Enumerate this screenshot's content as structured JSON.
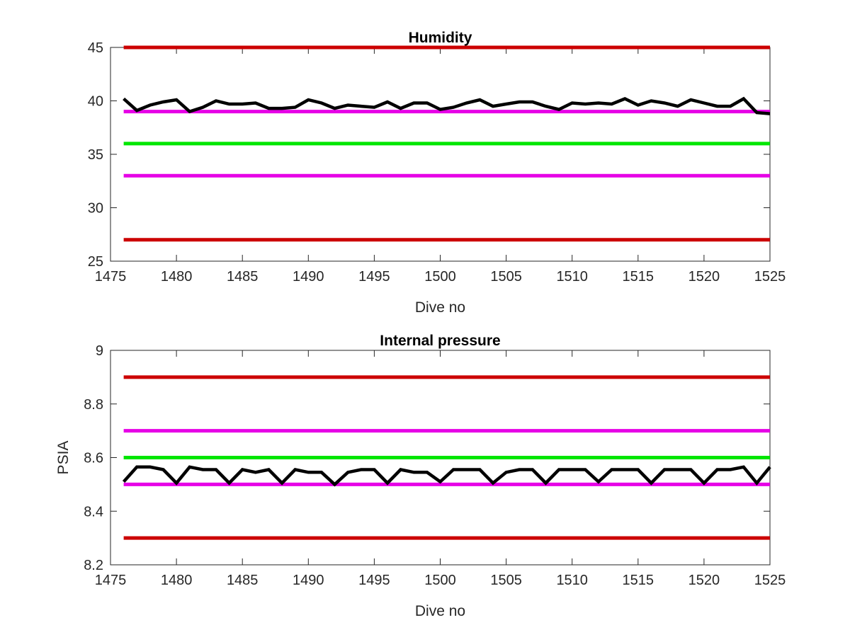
{
  "chart_data": [
    {
      "type": "line",
      "title": "Humidity",
      "xlabel": "Dive no",
      "ylabel": "",
      "xlim": [
        1475,
        1525
      ],
      "ylim": [
        25,
        45
      ],
      "xticks": [
        1475,
        1480,
        1485,
        1490,
        1495,
        1500,
        1505,
        1510,
        1515,
        1520,
        1525
      ],
      "yticks": [
        25,
        30,
        35,
        40,
        45
      ],
      "grid": false,
      "threshold_lines": [
        {
          "value": 45,
          "color": "#cc0000",
          "x_range": [
            1476,
            1525
          ]
        },
        {
          "value": 39,
          "color": "#e600e6",
          "x_range": [
            1476,
            1525
          ]
        },
        {
          "value": 36,
          "color": "#00e600",
          "x_range": [
            1476,
            1525
          ]
        },
        {
          "value": 33,
          "color": "#e600e6",
          "x_range": [
            1476,
            1525
          ]
        },
        {
          "value": 27,
          "color": "#cc0000",
          "x_range": [
            1476,
            1525
          ]
        }
      ],
      "series": [
        {
          "color": "#000000",
          "x": [
            1476,
            1477,
            1478,
            1479,
            1480,
            1481,
            1482,
            1483,
            1484,
            1485,
            1486,
            1487,
            1488,
            1489,
            1490,
            1491,
            1492,
            1493,
            1494,
            1495,
            1496,
            1497,
            1498,
            1499,
            1500,
            1501,
            1502,
            1503,
            1504,
            1505,
            1506,
            1507,
            1508,
            1509,
            1510,
            1511,
            1512,
            1513,
            1514,
            1515,
            1516,
            1517,
            1518,
            1519,
            1520,
            1521,
            1522,
            1523,
            1524,
            1525
          ],
          "y": [
            40.2,
            39.1,
            39.6,
            39.9,
            40.1,
            39.0,
            39.4,
            40.0,
            39.7,
            39.7,
            39.8,
            39.3,
            39.3,
            39.4,
            40.1,
            39.8,
            39.3,
            39.6,
            39.5,
            39.4,
            39.9,
            39.3,
            39.8,
            39.8,
            39.2,
            39.4,
            39.8,
            40.1,
            39.5,
            39.7,
            39.9,
            39.9,
            39.5,
            39.2,
            39.8,
            39.7,
            39.8,
            39.7,
            40.2,
            39.6,
            40.0,
            39.8,
            39.5,
            40.1,
            39.8,
            39.5,
            39.5,
            40.2,
            38.9,
            38.8
          ]
        }
      ]
    },
    {
      "type": "line",
      "title": "Internal pressure",
      "xlabel": "Dive no",
      "ylabel": "PSIA",
      "xlim": [
        1475,
        1525
      ],
      "ylim": [
        8.2,
        9
      ],
      "xticks": [
        1475,
        1480,
        1485,
        1490,
        1495,
        1500,
        1505,
        1510,
        1515,
        1520,
        1525
      ],
      "yticks": [
        8.2,
        8.4,
        8.6,
        8.8,
        9
      ],
      "grid": false,
      "threshold_lines": [
        {
          "value": 8.9,
          "color": "#cc0000",
          "x_range": [
            1476,
            1525
          ]
        },
        {
          "value": 8.7,
          "color": "#e600e6",
          "x_range": [
            1476,
            1525
          ]
        },
        {
          "value": 8.6,
          "color": "#00e600",
          "x_range": [
            1476,
            1525
          ]
        },
        {
          "value": 8.5,
          "color": "#e600e6",
          "x_range": [
            1476,
            1525
          ]
        },
        {
          "value": 8.3,
          "color": "#cc0000",
          "x_range": [
            1476,
            1525
          ]
        }
      ],
      "series": [
        {
          "color": "#000000",
          "x": [
            1476,
            1477,
            1478,
            1479,
            1480,
            1481,
            1482,
            1483,
            1484,
            1485,
            1486,
            1487,
            1488,
            1489,
            1490,
            1491,
            1492,
            1493,
            1494,
            1495,
            1496,
            1497,
            1498,
            1499,
            1500,
            1501,
            1502,
            1503,
            1504,
            1505,
            1506,
            1507,
            1508,
            1509,
            1510,
            1511,
            1512,
            1513,
            1514,
            1515,
            1516,
            1517,
            1518,
            1519,
            1520,
            1521,
            1522,
            1523,
            1524,
            1525
          ],
          "y": [
            8.51,
            8.565,
            8.565,
            8.555,
            8.505,
            8.565,
            8.555,
            8.555,
            8.505,
            8.555,
            8.545,
            8.555,
            8.505,
            8.555,
            8.545,
            8.545,
            8.5,
            8.545,
            8.555,
            8.555,
            8.505,
            8.555,
            8.545,
            8.545,
            8.51,
            8.555,
            8.555,
            8.555,
            8.505,
            8.545,
            8.555,
            8.555,
            8.505,
            8.555,
            8.555,
            8.555,
            8.51,
            8.555,
            8.555,
            8.555,
            8.505,
            8.555,
            8.555,
            8.555,
            8.505,
            8.555,
            8.555,
            8.565,
            8.505,
            8.565
          ]
        }
      ]
    }
  ]
}
